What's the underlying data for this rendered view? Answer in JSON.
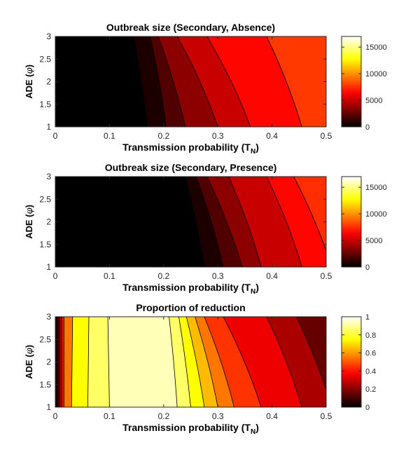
{
  "chart_data": [
    {
      "type": "contourf",
      "title": "Outbreak size (Secondary, Absence)",
      "xlabel": "Transmission probability (T",
      "xlabel_sub": "N",
      "xlabel_close": ")",
      "ylabel": "ADE (",
      "ylabel_symbol": "φ",
      "ylabel_close": ")",
      "xlim": [
        0,
        0.5
      ],
      "ylim": [
        1,
        3
      ],
      "x_ticks": [
        "0",
        "0.1",
        "0.2",
        "0.3",
        "0.4",
        "0.5"
      ],
      "y_ticks": [
        "1",
        "1.5",
        "2",
        "2.5",
        "3"
      ],
      "colorbar": {
        "range": [
          0,
          17000
        ],
        "ticks": [
          0,
          5000,
          10000,
          15000
        ],
        "tick_labels": [
          "0",
          "5000",
          "10000",
          "15000"
        ]
      },
      "contour_levels": [
        {
          "bottom_x": 0.17,
          "top_x": 0.145,
          "value": 700
        },
        {
          "bottom_x": 0.205,
          "top_x": 0.175,
          "value": 2000
        },
        {
          "bottom_x": 0.24,
          "top_x": 0.19,
          "value": 3500
        },
        {
          "bottom_x": 0.3,
          "top_x": 0.225,
          "value": 5000
        },
        {
          "bottom_x": 0.36,
          "top_x": 0.28,
          "value": 6500
        },
        {
          "bottom_x": 0.455,
          "top_x": 0.39,
          "value": 7800
        }
      ]
    },
    {
      "type": "contourf",
      "title": "Outbreak size (Secondary, Presence)",
      "xlabel": "Transmission probability (T",
      "xlabel_sub": "N",
      "xlabel_close": ")",
      "ylabel": "ADE (",
      "ylabel_symbol": "φ",
      "ylabel_close": ")",
      "xlim": [
        0,
        0.5
      ],
      "ylim": [
        1,
        3
      ],
      "x_ticks": [
        "0",
        "0.1",
        "0.2",
        "0.3",
        "0.4",
        "0.5"
      ],
      "y_ticks": [
        "1",
        "1.5",
        "2",
        "2.5",
        "3"
      ],
      "colorbar": {
        "range": [
          0,
          17000
        ],
        "ticks": [
          0,
          5000,
          10000,
          15000
        ],
        "tick_labels": [
          "0",
          "5000",
          "10000",
          "15000"
        ]
      },
      "contour_levels": [
        {
          "bottom_x": 0.275,
          "top_x": 0.24,
          "value": 700
        },
        {
          "bottom_x": 0.31,
          "top_x": 0.26,
          "value": 2000
        },
        {
          "bottom_x": 0.345,
          "top_x": 0.28,
          "value": 3500
        },
        {
          "bottom_x": 0.38,
          "top_x": 0.32,
          "value": 5000
        },
        {
          "bottom_x": 0.455,
          "top_x": 0.39,
          "value": 6500
        },
        {
          "bottom_x": 0.51,
          "top_x": 0.44,
          "value": 7500
        }
      ]
    },
    {
      "type": "contourf",
      "title": "Proportion of reduction",
      "xlabel": "Transmission probability (T",
      "xlabel_sub": "N",
      "xlabel_close": ")",
      "ylabel": "ADE (",
      "ylabel_symbol": "φ",
      "ylabel_close": ")",
      "xlim": [
        0,
        0.5
      ],
      "ylim": [
        1,
        3
      ],
      "x_ticks": [
        "0",
        "0.1",
        "0.2",
        "0.3",
        "0.4",
        "0.5"
      ],
      "y_ticks": [
        "1",
        "1.5",
        "2",
        "2.5",
        "3"
      ],
      "colorbar": {
        "range": [
          0,
          1
        ],
        "ticks": [
          0,
          0.2,
          0.4,
          0.6,
          0.8,
          1
        ],
        "tick_labels": [
          "0",
          "0.2",
          "0.4",
          "0.6",
          "0.8",
          "1"
        ]
      },
      "contour_levels": [
        {
          "bottom_x": 0.004,
          "top_x": 0.004,
          "value": 0.1
        },
        {
          "bottom_x": 0.008,
          "top_x": 0.008,
          "value": 0.25
        },
        {
          "bottom_x": 0.012,
          "top_x": 0.012,
          "value": 0.4
        },
        {
          "bottom_x": 0.016,
          "top_x": 0.016,
          "value": 0.55
        },
        {
          "bottom_x": 0.03,
          "top_x": 0.032,
          "value": 0.75
        },
        {
          "bottom_x": 0.06,
          "top_x": 0.062,
          "value": 0.85
        },
        {
          "bottom_x": 0.1,
          "top_x": 0.097,
          "value": 0.93
        },
        {
          "bottom_x": 0.225,
          "top_x": 0.21,
          "value": 0.85
        },
        {
          "bottom_x": 0.25,
          "top_x": 0.228,
          "value": 0.75
        },
        {
          "bottom_x": 0.275,
          "top_x": 0.242,
          "value": 0.65
        },
        {
          "bottom_x": 0.3,
          "top_x": 0.258,
          "value": 0.55
        },
        {
          "bottom_x": 0.33,
          "top_x": 0.275,
          "value": 0.45
        },
        {
          "bottom_x": 0.38,
          "top_x": 0.31,
          "value": 0.35
        },
        {
          "bottom_x": 0.455,
          "top_x": 0.39,
          "value": 0.25
        },
        {
          "bottom_x": 0.51,
          "top_x": 0.445,
          "value": 0.15
        }
      ],
      "background_value": 0.05
    }
  ]
}
